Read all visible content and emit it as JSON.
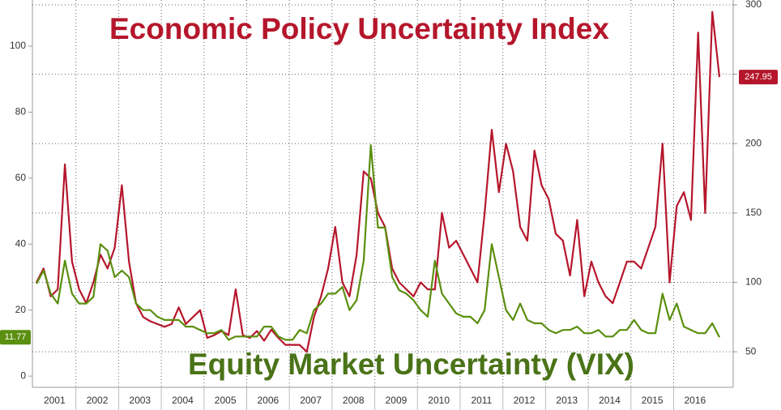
{
  "chart_data": {
    "type": "line",
    "x_axis_labels": [
      "2001",
      "2002",
      "2003",
      "2004",
      "2005",
      "2006",
      "2007",
      "2008",
      "2009",
      "2010",
      "2011",
      "2012",
      "2013",
      "2014",
      "2015",
      "2016"
    ],
    "series": [
      {
        "name": "Economic Policy Uncertainty Index",
        "color": "#b5162b",
        "axis": "y2",
        "values": [
          100,
          110,
          90,
          95,
          185,
          115,
          95,
          85,
          100,
          120,
          110,
          125,
          170,
          115,
          85,
          75,
          72,
          70,
          68,
          70,
          82,
          70,
          75,
          80,
          60,
          62,
          65,
          62,
          95,
          62,
          60,
          65,
          58,
          66,
          60,
          55,
          55,
          55,
          50,
          75,
          90,
          110,
          140,
          100,
          90,
          120,
          180,
          175,
          150,
          140,
          110,
          100,
          95,
          90,
          100,
          95,
          95,
          150,
          125,
          130,
          120,
          110,
          100,
          150,
          210,
          165,
          200,
          180,
          140,
          130,
          195,
          170,
          160,
          135,
          130,
          105,
          145,
          90,
          115,
          100,
          90,
          85,
          100,
          115,
          115,
          110,
          125,
          140,
          200,
          100,
          155,
          165,
          145,
          280,
          150,
          295,
          247.95
        ]
      },
      {
        "name": "Equity Market Uncertainty (VIX)",
        "color": "#5a8f0f",
        "axis": "y",
        "values": [
          28,
          32,
          25,
          22,
          35,
          25,
          22,
          22,
          24,
          40,
          38,
          30,
          32,
          30,
          22,
          20,
          20,
          18,
          17,
          17,
          17,
          15,
          15,
          14,
          13,
          13,
          14,
          11,
          12,
          12,
          12,
          12,
          15,
          15,
          12,
          11,
          11,
          14,
          13,
          20,
          22,
          25,
          25,
          27,
          20,
          23,
          35,
          70,
          45,
          45,
          30,
          26,
          25,
          23,
          20,
          18,
          35,
          25,
          22,
          19,
          18,
          18,
          16,
          20,
          40,
          30,
          20,
          17,
          22,
          17,
          16,
          16,
          14,
          13,
          14,
          14,
          15,
          13,
          13,
          14,
          12,
          12,
          14,
          14,
          17,
          14,
          13,
          13,
          25,
          17,
          22,
          15,
          14,
          13,
          13,
          16,
          11.77
        ]
      }
    ],
    "ylim": [
      -3.4,
      114
    ],
    "yticks": [
      0,
      20,
      40,
      60,
      80,
      100
    ],
    "y2lim": [
      24.4,
      303.5
    ],
    "y2ticks": [
      50,
      100,
      150,
      200,
      250,
      300
    ],
    "grid": true
  }
}
